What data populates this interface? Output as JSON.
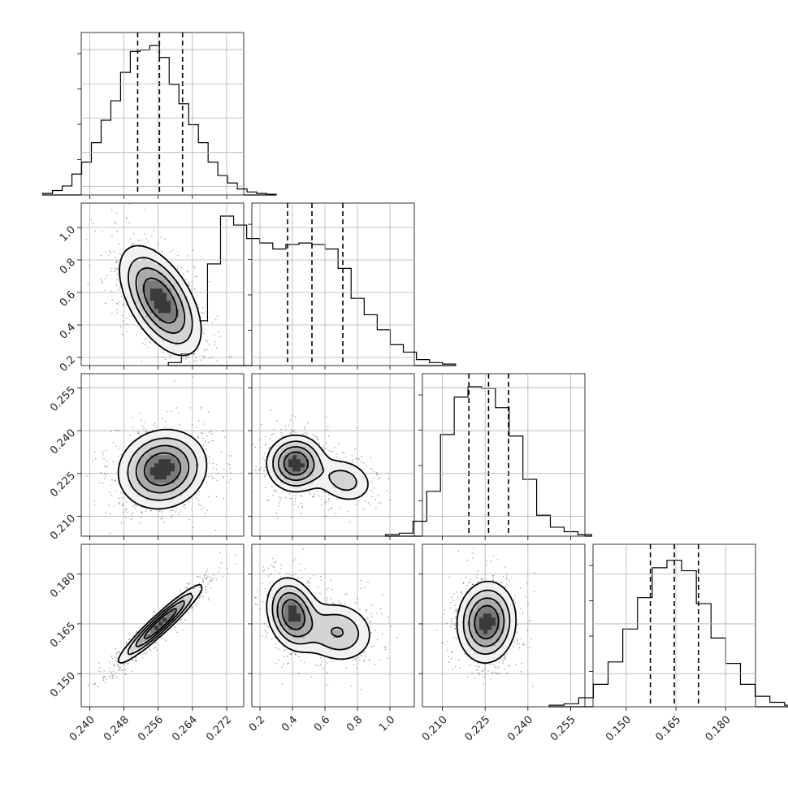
{
  "chart_data": {
    "type": "corner",
    "grid": true,
    "parameters": [
      {
        "range": [
          0.238,
          0.276
        ],
        "ticks": [
          0.24,
          0.248,
          0.256,
          0.264,
          0.272
        ],
        "tick_labels": [
          "0.240",
          "0.248",
          "0.256",
          "0.264",
          "0.272"
        ]
      },
      {
        "range": [
          0.15,
          1.15
        ],
        "ticks": [
          0.2,
          0.4,
          0.6,
          0.8,
          1.0
        ],
        "tick_labels": [
          "0.2",
          "0.4",
          "0.6",
          "0.8",
          "1.0"
        ]
      },
      {
        "range": [
          0.203,
          0.26
        ],
        "ticks": [
          0.21,
          0.225,
          0.24,
          0.255
        ],
        "tick_labels": [
          "0.210",
          "0.225",
          "0.240",
          "0.255"
        ]
      },
      {
        "range": [
          0.14,
          0.189
        ],
        "ticks": [
          0.15,
          0.165,
          0.18
        ],
        "tick_labels": [
          "0.150",
          "0.165",
          "0.180"
        ]
      }
    ],
    "histograms": [
      {
        "quantiles": [
          0.2512,
          0.2563,
          0.2617
        ],
        "counts": [
          0.01,
          0.03,
          0.06,
          0.14,
          0.22,
          0.35,
          0.5,
          0.63,
          0.82,
          0.96,
          0.97,
          1.0,
          0.92,
          0.74,
          0.61,
          0.47,
          0.35,
          0.22,
          0.13,
          0.08,
          0.04,
          0.02,
          0.01,
          0.005
        ]
      },
      {
        "quantiles": [
          0.37,
          0.52,
          0.71
        ],
        "counts": [
          0.02,
          0.08,
          0.3,
          0.68,
          1.0,
          0.94,
          0.85,
          0.82,
          0.78,
          0.81,
          0.82,
          0.81,
          0.78,
          0.65,
          0.45,
          0.34,
          0.24,
          0.14,
          0.09,
          0.04,
          0.02,
          0.01
        ]
      },
      {
        "quantiles": [
          0.2193,
          0.2262,
          0.2332
        ],
        "counts": [
          0.01,
          0.02,
          0.1,
          0.3,
          0.68,
          0.93,
          1.0,
          0.99,
          0.86,
          0.67,
          0.38,
          0.14,
          0.06,
          0.03,
          0.01
        ]
      },
      {
        "quantiles": [
          0.1573,
          0.1645,
          0.1718
        ],
        "counts": [
          0.01,
          0.02,
          0.06,
          0.15,
          0.3,
          0.52,
          0.73,
          0.93,
          0.98,
          0.91,
          0.69,
          0.46,
          0.29,
          0.15,
          0.07,
          0.03,
          0.01
        ]
      }
    ],
    "contours": [
      {
        "x": 0,
        "y": 1,
        "components": [
          {
            "cx": 0.2565,
            "cy": 0.55,
            "sx": 0.0048,
            "sy": 0.17,
            "rho": -0.55,
            "w": 1.0
          }
        ]
      },
      {
        "x": 0,
        "y": 2,
        "components": [
          {
            "cx": 0.257,
            "cy": 0.2265,
            "sx": 0.0052,
            "sy": 0.007,
            "rho": 0.1,
            "w": 1.0
          }
        ]
      },
      {
        "x": 1,
        "y": 2,
        "components": [
          {
            "cx": 0.42,
            "cy": 0.2285,
            "sx": 0.09,
            "sy": 0.005,
            "rho": 0.0,
            "w": 0.75
          },
          {
            "cx": 0.72,
            "cy": 0.2225,
            "sx": 0.1,
            "sy": 0.0045,
            "rho": -0.2,
            "w": 0.3
          }
        ]
      },
      {
        "x": 0,
        "y": 3,
        "components": [
          {
            "cx": 0.2565,
            "cy": 0.165,
            "sx": 0.005,
            "sy": 0.006,
            "rho": 0.95,
            "w": 1.0
          }
        ]
      },
      {
        "x": 1,
        "y": 3,
        "components": [
          {
            "cx": 0.4,
            "cy": 0.168,
            "sx": 0.08,
            "sy": 0.0055,
            "rho": -0.2,
            "w": 0.75
          },
          {
            "cx": 0.68,
            "cy": 0.1625,
            "sx": 0.12,
            "sy": 0.005,
            "rho": -0.1,
            "w": 0.4
          }
        ]
      },
      {
        "x": 2,
        "y": 3,
        "components": [
          {
            "cx": 0.2255,
            "cy": 0.1655,
            "sx": 0.0052,
            "sy": 0.0062,
            "rho": 0.05,
            "w": 1.0
          }
        ]
      }
    ]
  }
}
